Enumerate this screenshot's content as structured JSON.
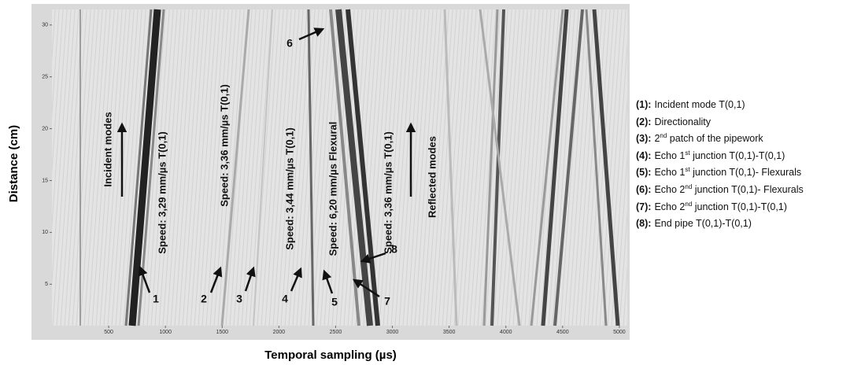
{
  "chart_data": {
    "type": "image",
    "xlabel": "Temporal sampling (µs)",
    "ylabel": "Distance (cm)",
    "xlim": [
      0,
      5070
    ],
    "ylim": [
      1,
      31.5
    ],
    "xticks": [
      500,
      1000,
      1500,
      2000,
      2500,
      3000,
      3500,
      4000,
      4500,
      5000
    ],
    "yticks": [
      5,
      10,
      15,
      20,
      25,
      30
    ],
    "annotations": [
      "Incident modes",
      "Speed: 3,29 mm/µs T(0,1)",
      "Speed: 3,36 mm/µs T(0,1)",
      "Speed: 3,44 mm/µs T(0,1)",
      "Speed: 6,20 mm/µs  Flexural",
      "Speed: 3,36 mm/µs T(0,1)",
      "Reflected modes"
    ],
    "markers": [
      "1",
      "2",
      "3",
      "4",
      "5",
      "6",
      "7",
      "8"
    ],
    "legend_items": [
      {
        "key": "(1):",
        "text": [
          "Incident mode T(0,1)"
        ]
      },
      {
        "key": "(2):",
        "text": [
          "Directionality"
        ]
      },
      {
        "key": "(3):",
        "text": [
          "2",
          "nd",
          " patch of the pipework"
        ]
      },
      {
        "key": "(4):",
        "text": [
          "Echo 1",
          "st",
          " junction T(0,1)-T(0,1)"
        ]
      },
      {
        "key": "(5):",
        "text": [
          "Echo 1",
          "st",
          " junction T(0,1)- Flexurals"
        ]
      },
      {
        "key": "(6):",
        "text": [
          "Echo 2",
          "nd",
          " junction T(0,1)- Flexurals"
        ]
      },
      {
        "key": "(7):",
        "text": [
          "Echo 2",
          "nd",
          " junction T(0,1)-T(0,1)"
        ]
      },
      {
        "key": "(8):",
        "text": [
          "End pipe T(0,1)-T(0,1)"
        ]
      }
    ]
  }
}
